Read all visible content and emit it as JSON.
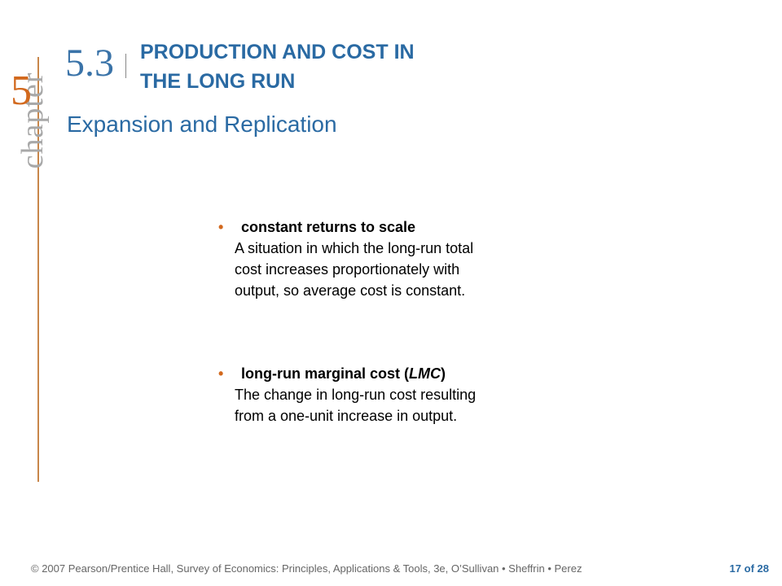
{
  "chapter": {
    "word": "chapter",
    "number": "5"
  },
  "section": {
    "number": "5.3",
    "title_line1": "PRODUCTION AND COST IN",
    "title_line2": "THE LONG RUN"
  },
  "subtitle": "Expansion and Replication",
  "bullets": [
    {
      "term": "constant returns to scale",
      "definition_lines": [
        "A situation in which the long-run total",
        "cost increases proportionately with",
        "output, so average cost is constant."
      ]
    },
    {
      "term_prefix": "long-run marginal cost (",
      "term_italic": "LMC",
      "term_suffix": ")",
      "definition_lines": [
        "The change in long-run cost resulting",
        "from a one-unit increase in output."
      ]
    }
  ],
  "footer": {
    "copyright": "© 2007 Pearson/Prentice Hall, Survey of Economics: Principles, Applications & Tools, 3e, O’Sullivan • Sheffrin • Perez",
    "page_current": "17",
    "page_of": "of",
    "page_total": "28"
  },
  "colors": {
    "accent_blue": "#2a6aa3",
    "accent_orange": "#d2691e",
    "rule": "#c8864a"
  }
}
